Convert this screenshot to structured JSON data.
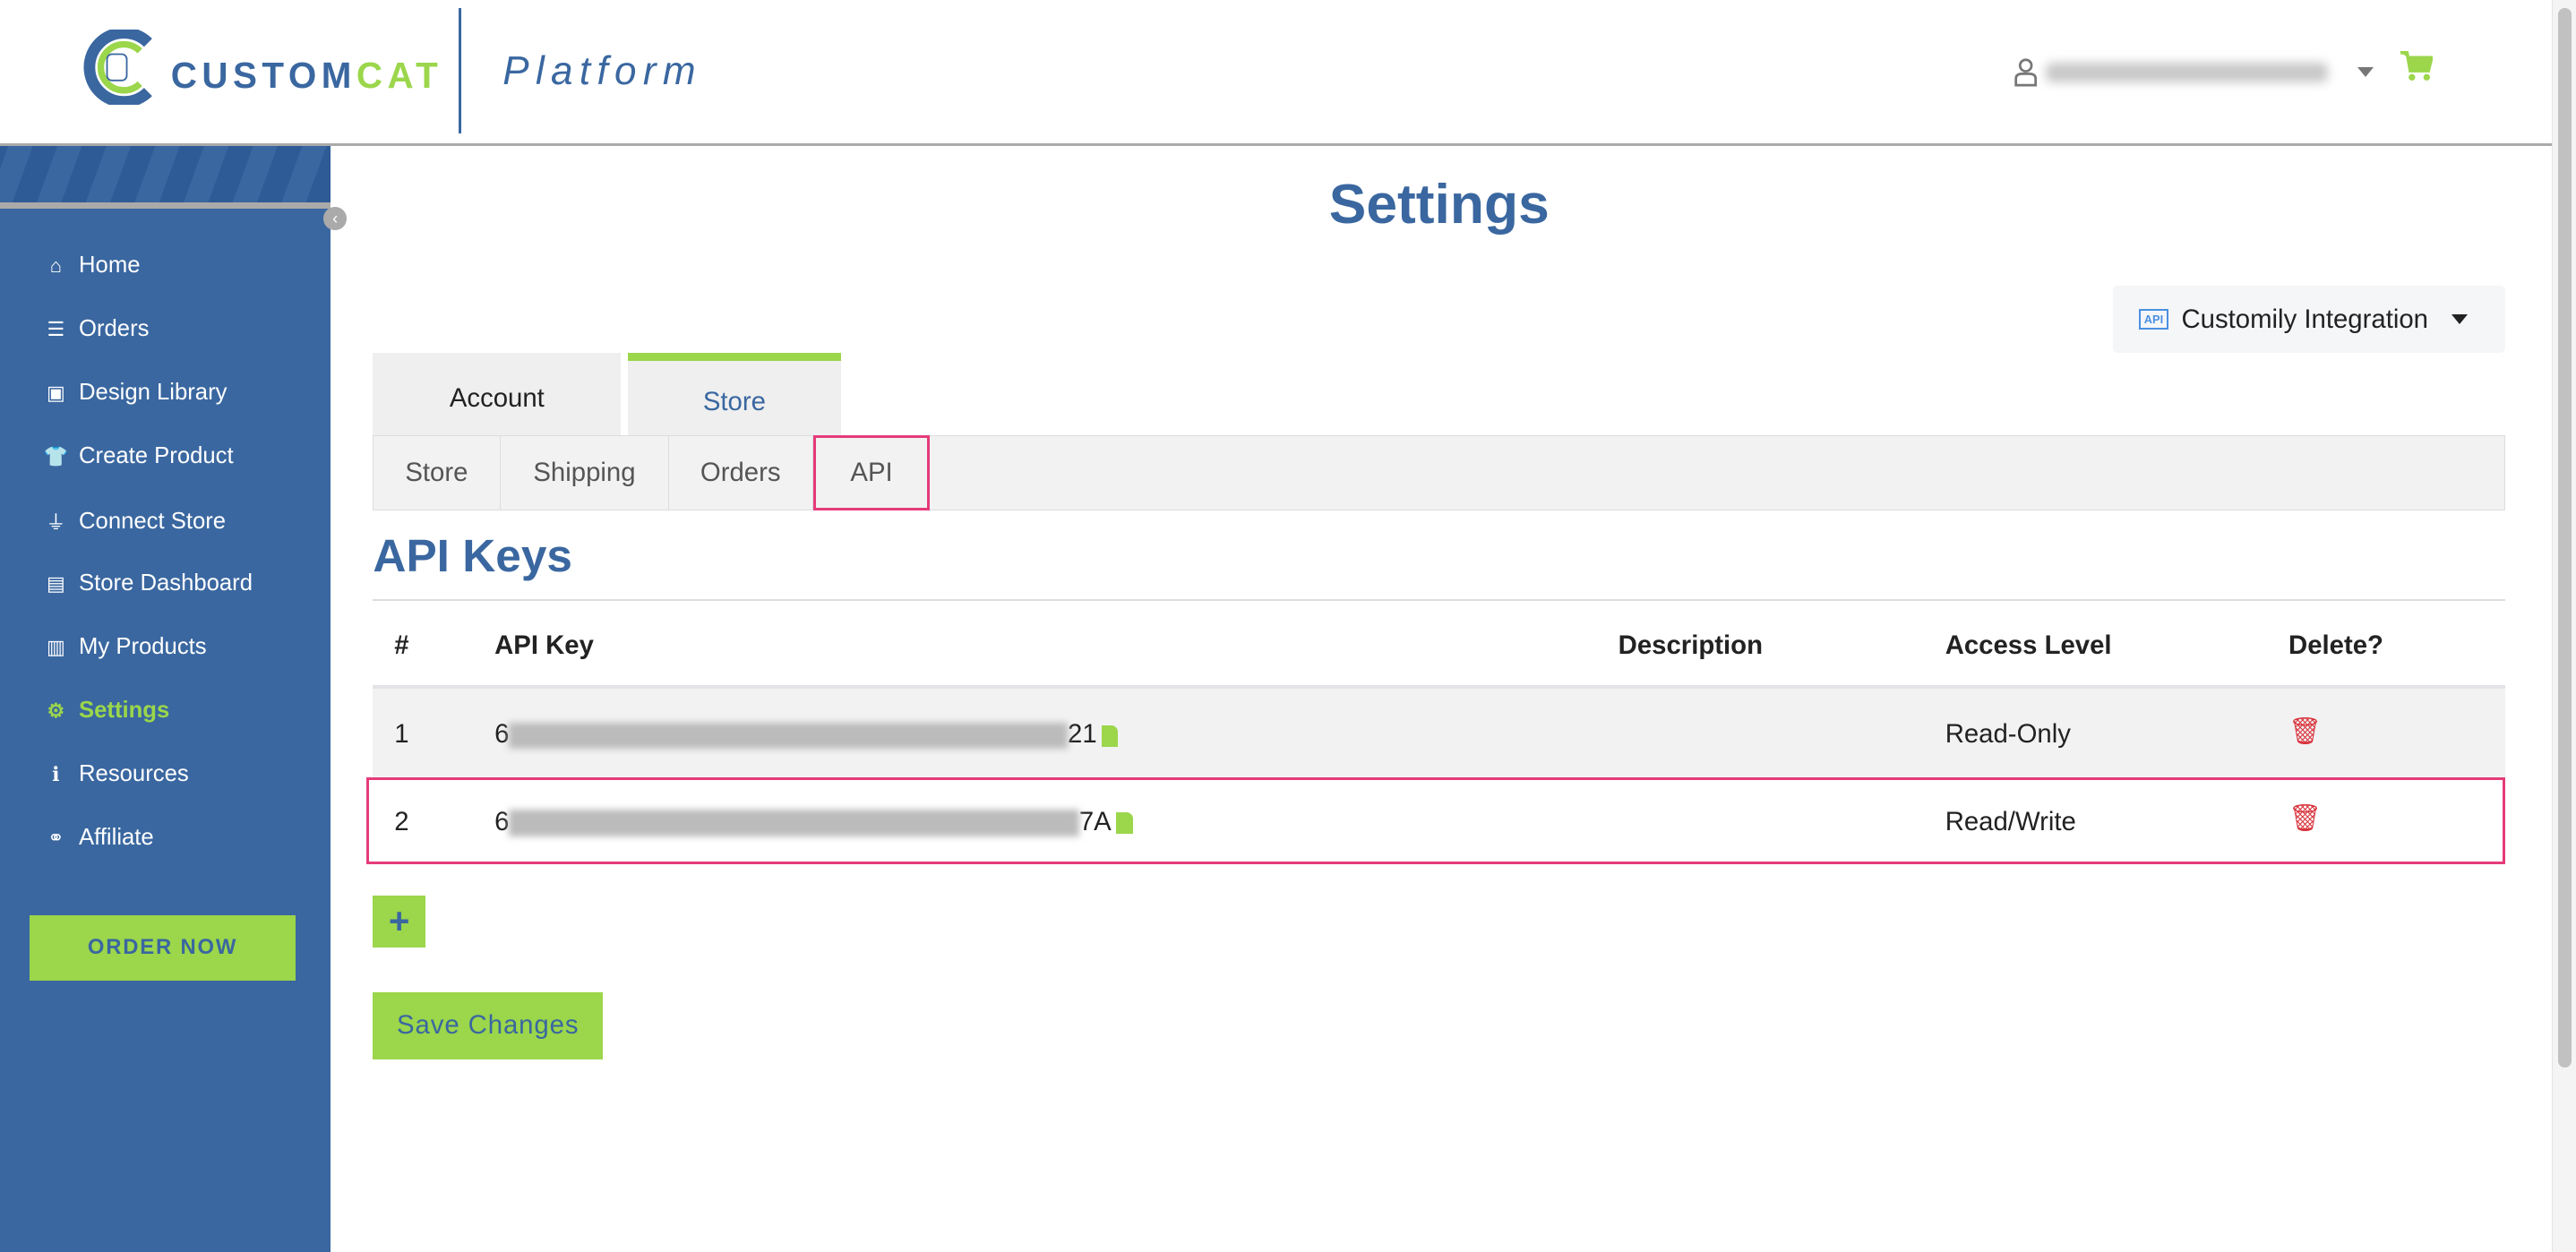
{
  "header": {
    "brand_main": "CUSTOM",
    "brand_accent": "CAT",
    "platform": "Platform",
    "user_icon": "user-icon",
    "cart_icon": "cart-icon"
  },
  "sidebar": {
    "items": [
      {
        "label": "Home",
        "icon": "home-icon",
        "glyph": "⌂"
      },
      {
        "label": "Orders",
        "icon": "list-icon",
        "glyph": "☰"
      },
      {
        "label": "Design Library",
        "icon": "image-icon",
        "glyph": "▣"
      },
      {
        "label": "Create Product",
        "icon": "shirt-icon",
        "glyph": "👕"
      },
      {
        "label": "Connect Store",
        "icon": "plug-icon",
        "glyph": "⏚"
      },
      {
        "label": "Store Dashboard",
        "icon": "store-icon",
        "glyph": "▤"
      },
      {
        "label": "My Products",
        "icon": "clipboard-icon",
        "glyph": "▥"
      },
      {
        "label": "Settings",
        "icon": "gear-icon",
        "glyph": "⚙",
        "active": true
      },
      {
        "label": "Resources",
        "icon": "info-icon",
        "glyph": "ℹ"
      },
      {
        "label": "Affiliate",
        "icon": "handshake-icon",
        "glyph": "⚭"
      }
    ],
    "order_now": "ORDER NOW"
  },
  "main": {
    "title": "Settings",
    "integration": {
      "label": "Customily Integration",
      "icon_text": "API"
    },
    "tabs": [
      {
        "label": "Account"
      },
      {
        "label": "Store",
        "active": true
      }
    ],
    "subtabs": [
      {
        "label": "Store"
      },
      {
        "label": "Shipping"
      },
      {
        "label": "Orders"
      },
      {
        "label": "API",
        "active": true
      }
    ],
    "section_title": "API Keys",
    "table": {
      "headers": [
        "#",
        "API Key",
        "Description",
        "Access Level",
        "Delete?"
      ],
      "rows": [
        {
          "num": "1",
          "key_prefix": "6",
          "key_suffix": "21",
          "description": "",
          "access": "Read-Only"
        },
        {
          "num": "2",
          "key_prefix": "6",
          "key_suffix": "7A",
          "description": "",
          "access": "Read/Write"
        }
      ]
    },
    "add_label": "+",
    "save_label": "Save Changes"
  },
  "colors": {
    "brand_blue": "#3a67a0",
    "accent_green": "#9bd64b",
    "highlight_pink": "#e53b7a",
    "delete_red": "#d9343d"
  }
}
